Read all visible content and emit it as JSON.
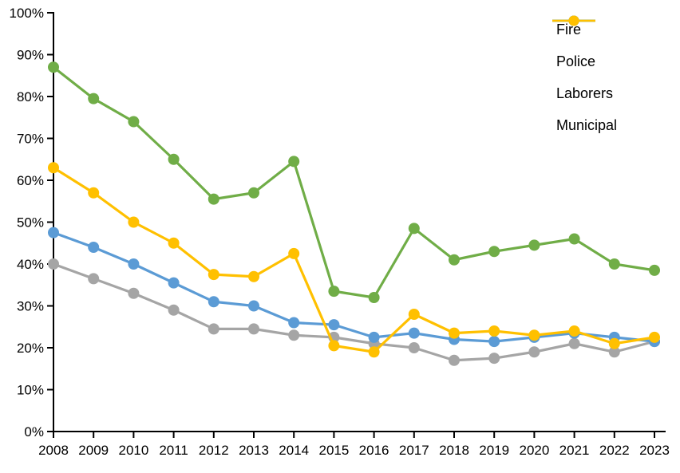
{
  "chart_data": {
    "type": "line",
    "title": "",
    "xlabel": "",
    "ylabel": "",
    "grid": false,
    "legend_position": "top-right",
    "categories": [
      "2008",
      "2009",
      "2010",
      "2011",
      "2012",
      "2013",
      "2014",
      "2015",
      "2016",
      "2017",
      "2018",
      "2019",
      "2020",
      "2021",
      "2022",
      "2023"
    ],
    "y_axis": {
      "min": 0,
      "max": 100,
      "step": 10,
      "tick_labels": [
        "0%",
        "10%",
        "20%",
        "30%",
        "40%",
        "50%",
        "60%",
        "70%",
        "80%",
        "90%",
        "100%"
      ]
    },
    "series": [
      {
        "name": "Fire",
        "color": "#A5A5A5",
        "values": [
          40,
          36.5,
          33,
          29,
          24.5,
          24.5,
          23,
          22.5,
          21,
          20,
          17,
          17.5,
          19,
          21,
          19,
          21.5
        ]
      },
      {
        "name": "Police",
        "color": "#5B9BD5",
        "values": [
          47.5,
          44,
          40,
          35.5,
          31,
          30,
          26,
          25.5,
          22.5,
          23.5,
          22,
          21.5,
          22.5,
          23.5,
          22.5,
          21.5
        ]
      },
      {
        "name": "Laborers",
        "color": "#70AD47",
        "values": [
          87,
          79.5,
          74,
          65,
          55.5,
          57,
          64.5,
          33.5,
          32,
          48.5,
          41,
          43,
          44.5,
          46,
          40,
          38.5
        ]
      },
      {
        "name": "Municipal",
        "color": "#FFC000",
        "values": [
          63,
          57,
          50,
          45,
          37.5,
          37,
          42.5,
          20.5,
          19,
          28,
          23.5,
          24,
          23,
          24,
          21,
          22.5
        ]
      }
    ],
    "axis_color": "#000000"
  }
}
